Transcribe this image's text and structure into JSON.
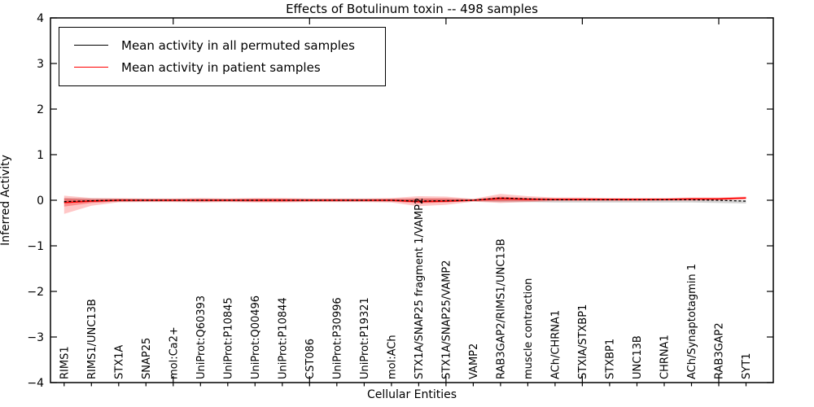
{
  "figure": {
    "title": "Effects of Botulinum toxin -- 498 samples"
  },
  "chart_data": {
    "type": "line",
    "title": "Effects of Botulinum toxin -- 498 samples",
    "xlabel": "Cellular Entities",
    "ylabel": "Inferred Activity",
    "ylim": [
      -4,
      4
    ],
    "xlim": [
      0.5,
      27
    ],
    "ytick_values": [
      4,
      3,
      2,
      1,
      0,
      -1,
      -2,
      -3,
      -4
    ],
    "ytick_labels": [
      "4",
      "3",
      "2",
      "1",
      "0",
      "−1",
      "−2",
      "−3",
      "−4"
    ],
    "xtick_major_values": [
      5,
      10,
      15,
      20,
      25
    ],
    "grid": false,
    "legend_position": "upper left",
    "categories": [
      "RIMS1",
      "RIMS1/UNC13B",
      "STX1A",
      "SNAP25",
      "mol:Ca2+",
      "UniProt:Q60393",
      "UniProt:P10845",
      "UniProt:Q00496",
      "UniProt:P10844",
      "CST086",
      "UniProt:P30996",
      "UniProt:P19321",
      "mol:ACh",
      "STX1A/SNAP25 fragment 1/VAMP2",
      "STX1A/SNAP25/VAMP2",
      "VAMP2",
      "RAB3GAP2/RIMS1/UNC13B",
      "muscle contraction",
      "ACh/CHRNA1",
      "STXIA/STXBP1",
      "STXBP1",
      "UNC13B",
      "CHRNA1",
      "ACh/Synaptotagmin 1",
      "RAB3GAP2",
      "SYT1"
    ],
    "series": [
      {
        "name": "Mean activity in all permuted samples",
        "color": "#000000",
        "line_style": "dashed",
        "values": [
          -0.03,
          -0.01,
          0,
          0,
          0,
          0,
          0,
          0,
          0,
          0,
          0,
          0,
          0,
          -0.02,
          -0.01,
          0,
          0.05,
          0.03,
          0.01,
          0.01,
          0.01,
          0.01,
          0.01,
          0.01,
          0,
          -0.02
        ]
      },
      {
        "name": "Mean activity in patient samples",
        "color": "#ff0000",
        "line_style": "solid",
        "values": [
          -0.05,
          -0.02,
          0,
          0,
          0,
          0,
          0,
          0,
          0,
          0,
          0,
          0,
          0,
          -0.03,
          -0.02,
          0,
          0.04,
          0.02,
          0.02,
          0.02,
          0.02,
          0.02,
          0.02,
          0.03,
          0.03,
          0.05
        ]
      }
    ],
    "bands": [
      {
        "name": "permuted-samples-range",
        "color": "rgba(110,110,110,0.30)",
        "hi": [
          0.05,
          0.04,
          0.035,
          0.03,
          0.03,
          0.03,
          0.03,
          0.03,
          0.03,
          0.03,
          0.03,
          0.03,
          0.03,
          0.04,
          0.04,
          0.025,
          0.06,
          0.05,
          0.03,
          0.03,
          0.02,
          0.02,
          0.02,
          0.02,
          0.01,
          0
        ],
        "lo": [
          -0.06,
          -0.04,
          -0.035,
          -0.03,
          -0.03,
          -0.03,
          -0.03,
          -0.03,
          -0.03,
          -0.03,
          -0.03,
          -0.03,
          -0.03,
          -0.04,
          -0.04,
          -0.025,
          -0.04,
          -0.04,
          -0.05,
          -0.05,
          -0.05,
          -0.05,
          -0.05,
          -0.05,
          -0.06,
          -0.07
        ]
      },
      {
        "name": "patient-samples-range-outer",
        "color": "rgba(255,0,0,0.22)",
        "hi": [
          0.1,
          0.05,
          0.045,
          0.04,
          0.04,
          0.05,
          0.04,
          0.05,
          0.05,
          0.04,
          0.04,
          0.04,
          0.05,
          0.09,
          0.08,
          0.03,
          0.14,
          0.09,
          0.06,
          0.06,
          0.05,
          0.05,
          0.05,
          0.06,
          0.06,
          0.08
        ],
        "lo": [
          -0.3,
          -0.12,
          -0.045,
          -0.04,
          -0.04,
          -0.05,
          -0.04,
          -0.05,
          -0.05,
          -0.04,
          -0.04,
          -0.04,
          -0.05,
          -0.13,
          -0.1,
          -0.03,
          -0.06,
          -0.04,
          -0.02,
          -0.02,
          -0.02,
          -0.02,
          -0.01,
          -0.01,
          0.0,
          0.02
        ],
        "legend": null
      },
      {
        "name": "patient-samples-range-inner",
        "color": "rgba(255,0,0,0.30)",
        "hi": [
          0.04,
          0.02,
          0.025,
          0.02,
          0.02,
          0.025,
          0.02,
          0.03,
          0.03,
          0.02,
          0.02,
          0.02,
          0.025,
          0.04,
          0.04,
          0.015,
          0.08,
          0.05,
          0.04,
          0.04,
          0.035,
          0.035,
          0.035,
          0.04,
          0.045,
          0.06
        ],
        "lo": [
          -0.14,
          -0.06,
          -0.025,
          -0.02,
          -0.02,
          -0.025,
          -0.02,
          -0.03,
          -0.03,
          -0.02,
          -0.02,
          -0.02,
          -0.025,
          -0.07,
          -0.05,
          -0.015,
          -0.02,
          -0.01,
          0,
          0,
          0,
          0,
          0,
          0.01,
          0.01,
          0.03
        ]
      }
    ]
  }
}
